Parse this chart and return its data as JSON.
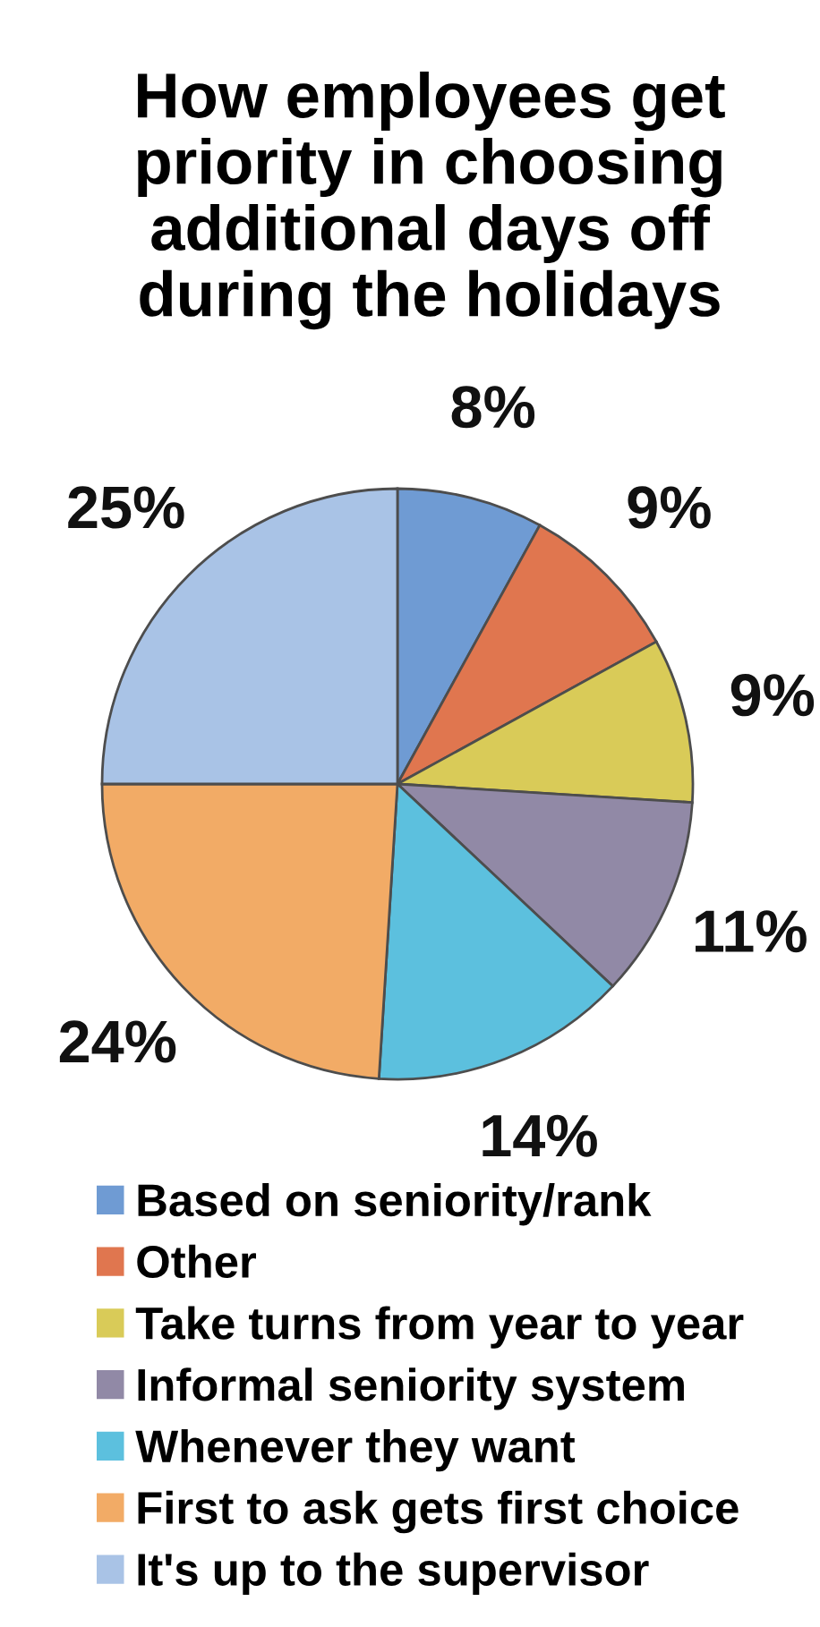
{
  "chart_data": {
    "type": "pie",
    "title": "How employees get\npriority in choosing\nadditional days off\nduring the holidays",
    "categories": [
      "Based on seniority/rank",
      "Other",
      "Take turns from year to year",
      "Informal seniority system",
      "Whenever they want",
      "First to ask gets first choice",
      "It's up to the supervisor"
    ],
    "values": [
      8,
      9,
      9,
      11,
      14,
      24,
      25
    ],
    "value_labels": [
      "8%",
      "9%",
      "9%",
      "11%",
      "14%",
      "24%",
      "25%"
    ],
    "colors": [
      "#6f9bd3",
      "#e0764f",
      "#d9cb58",
      "#9189a6",
      "#5cc0de",
      "#f2ab66",
      "#a9c3e6"
    ],
    "legend": "bottom"
  }
}
